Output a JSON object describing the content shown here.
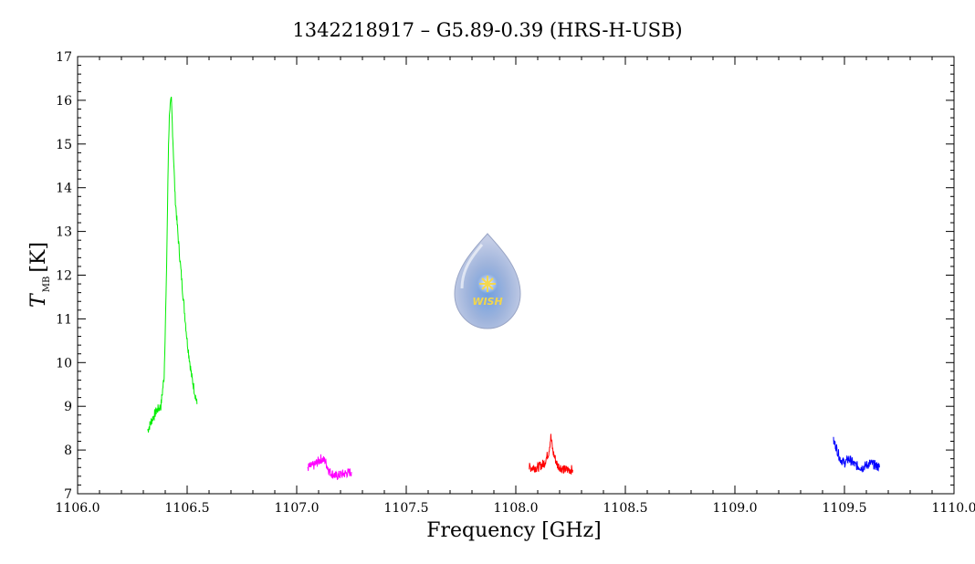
{
  "chart_data": {
    "type": "line",
    "title": "1342218917 – G5.89-0.39 (HRS-H-USB)",
    "xlabel": "Frequency [GHz]",
    "ylabel": {
      "symbol": "T",
      "subscript": "MB",
      "unit": "[K]"
    },
    "xlim": [
      1106.0,
      1110.0
    ],
    "ylim": [
      7,
      17
    ],
    "xticks": [
      "1106.0",
      "1106.5",
      "1107.0",
      "1107.5",
      "1108.0",
      "1108.5",
      "1109.0",
      "1109.5",
      "1110.0"
    ],
    "yticks": [
      "7",
      "8",
      "9",
      "10",
      "11",
      "12",
      "13",
      "14",
      "15",
      "16",
      "17"
    ],
    "grid": false,
    "series": [
      {
        "color": "#00ee00",
        "x": [
          1106.32,
          1106.34,
          1106.36,
          1106.38,
          1106.395,
          1106.405,
          1106.415,
          1106.42,
          1106.428,
          1106.435,
          1106.445,
          1106.46,
          1106.48,
          1106.5,
          1106.52,
          1106.545
        ],
        "y": [
          8.45,
          8.7,
          8.9,
          9.0,
          9.7,
          11.8,
          15.0,
          15.8,
          16.0,
          15.1,
          13.8,
          12.8,
          11.6,
          10.5,
          9.7,
          9.05
        ]
      },
      {
        "color": "#ff00ff",
        "x": [
          1107.05,
          1107.08,
          1107.11,
          1107.13,
          1107.15,
          1107.18,
          1107.21,
          1107.25
        ],
        "y": [
          7.6,
          7.65,
          7.8,
          7.75,
          7.5,
          7.4,
          7.45,
          7.5
        ]
      },
      {
        "color": "#ff0000",
        "x": [
          1108.06,
          1108.1,
          1108.13,
          1108.15,
          1108.16,
          1108.17,
          1108.19,
          1108.22,
          1108.26
        ],
        "y": [
          7.6,
          7.6,
          7.7,
          7.95,
          8.3,
          7.95,
          7.65,
          7.55,
          7.55
        ]
      },
      {
        "color": "#0000ff",
        "x": [
          1109.45,
          1109.46,
          1109.48,
          1109.5,
          1109.52,
          1109.55,
          1109.58,
          1109.62,
          1109.66
        ],
        "y": [
          8.2,
          8.1,
          7.8,
          7.7,
          7.8,
          7.65,
          7.6,
          7.7,
          7.6
        ]
      }
    ]
  },
  "logo": {
    "text": "WISH"
  }
}
